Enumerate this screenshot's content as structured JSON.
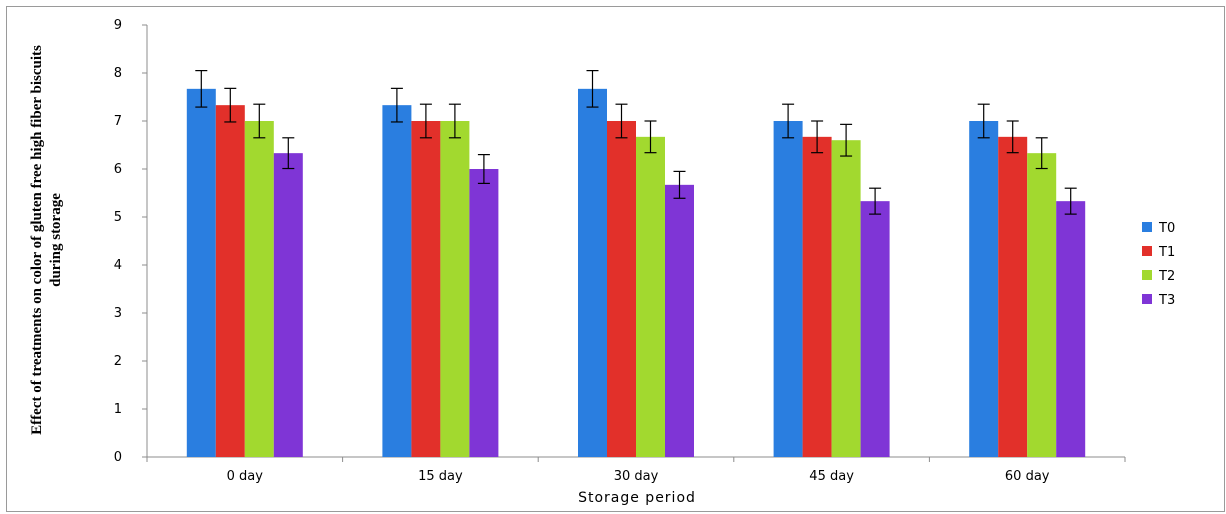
{
  "chart_data": {
    "type": "bar",
    "title": "",
    "xlabel": "Storage period",
    "ylabel_lines": [
      "Effect of treatments  on color of gluten free high fiber biscuits",
      "during storage"
    ],
    "categories": [
      "0 day",
      "15 day",
      "30 day",
      "45 day",
      "60 day"
    ],
    "ylim": [
      0,
      9
    ],
    "yticks": [
      0,
      1,
      2,
      3,
      4,
      5,
      6,
      7,
      8,
      9
    ],
    "grid": false,
    "legend_position": "right",
    "series": [
      {
        "name": "T0",
        "color": "#2a7ee0",
        "values": [
          7.67,
          7.33,
          7.67,
          7.0,
          7.0
        ],
        "errors": [
          0.38,
          0.35,
          0.38,
          0.35,
          0.35
        ]
      },
      {
        "name": "T1",
        "color": "#e2302a",
        "values": [
          7.33,
          7.0,
          7.0,
          6.67,
          6.67
        ],
        "errors": [
          0.35,
          0.35,
          0.35,
          0.33,
          0.33
        ]
      },
      {
        "name": "T2",
        "color": "#a2d92f",
        "values": [
          7.0,
          7.0,
          6.67,
          6.6,
          6.33
        ],
        "errors": [
          0.35,
          0.35,
          0.33,
          0.33,
          0.32
        ]
      },
      {
        "name": "T3",
        "color": "#7f35d6",
        "values": [
          6.33,
          6.0,
          5.67,
          5.33,
          5.33
        ],
        "errors": [
          0.32,
          0.3,
          0.28,
          0.27,
          0.27
        ]
      }
    ]
  }
}
